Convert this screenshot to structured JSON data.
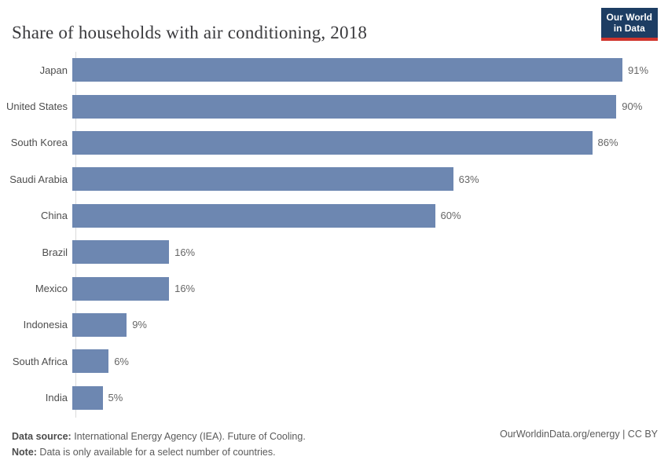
{
  "header": {
    "title": "Share of households with air conditioning, 2018",
    "logo": {
      "line1": "Our World",
      "line2": "in Data"
    }
  },
  "chart_data": {
    "type": "bar",
    "orientation": "horizontal",
    "title": "Share of households with air conditioning, 2018",
    "categories": [
      "Japan",
      "United States",
      "South Korea",
      "Saudi Arabia",
      "China",
      "Brazil",
      "Mexico",
      "Indonesia",
      "South Africa",
      "India"
    ],
    "values": [
      91,
      90,
      86,
      63,
      60,
      16,
      16,
      9,
      6,
      5
    ],
    "value_labels": [
      "91%",
      "90%",
      "86%",
      "63%",
      "60%",
      "16%",
      "16%",
      "9%",
      "6%",
      "5%"
    ],
    "unit": "%",
    "xlim": [
      0,
      100
    ],
    "grid": false,
    "legend": "none"
  },
  "footer": {
    "source_label": "Data source:",
    "source_text": " International Energy Agency (IEA). Future of Cooling.",
    "note_label": "Note:",
    "note_text": " Data is only available for a select number of countries.",
    "attribution": "OurWorldinData.org/energy | CC BY"
  },
  "colors": {
    "bar": "#6d87b1",
    "logo_bg": "#1d3d63",
    "logo_accent": "#d0342c",
    "axis_line": "#dadada"
  }
}
